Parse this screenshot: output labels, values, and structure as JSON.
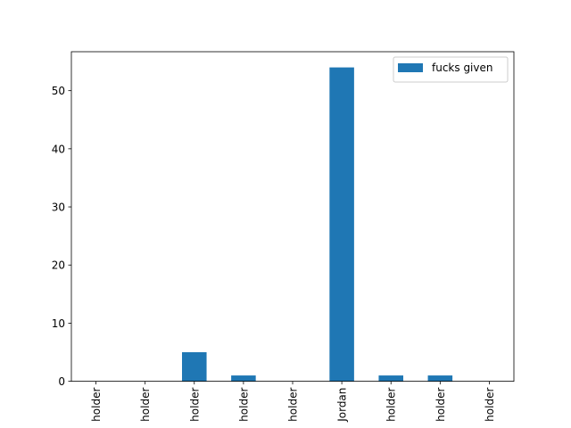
{
  "chart_data": {
    "type": "bar",
    "categories": [
      "holder",
      "holder",
      "holder",
      "holder",
      "holder",
      "Jordan",
      "holder",
      "holder",
      "holder"
    ],
    "series": [
      {
        "name": "fucks given",
        "values": [
          0,
          0,
          5,
          1,
          0,
          54,
          1,
          1,
          0
        ]
      }
    ],
    "ylim": [
      0,
      56.7
    ],
    "yticks": [
      0,
      10,
      20,
      30,
      40,
      50
    ],
    "bar_color": "#1f77b4",
    "grid": false,
    "legend_position": "upper right"
  }
}
